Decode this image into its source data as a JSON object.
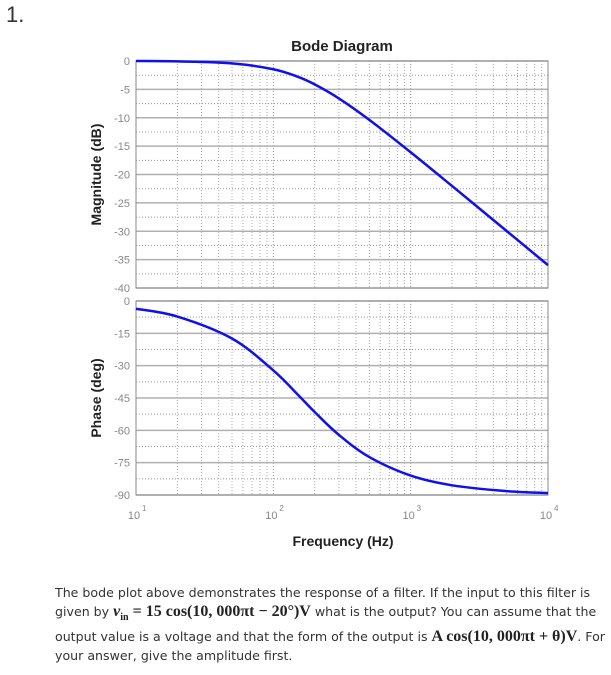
{
  "question_number": "1.",
  "chart_data": [
    {
      "type": "line",
      "title": "Bode Diagram",
      "ylabel": "Magnitude (dB)",
      "xscale": "log",
      "xlim": [
        10,
        10000
      ],
      "ylim": [
        -40,
        0
      ],
      "yticks": [
        "0",
        "-5",
        "-10",
        "-15",
        "-20",
        "-25",
        "-30",
        "-35",
        "-40"
      ],
      "grid": true,
      "color": "#1010ee",
      "x": [
        10,
        20,
        50,
        100,
        150,
        200,
        300,
        500,
        1000,
        2000,
        5000,
        10000
      ],
      "y": [
        0,
        -0.07,
        -0.41,
        -1.45,
        -2.76,
        -4.12,
        -6.59,
        -10.37,
        -16.08,
        -22.02,
        -29.96,
        -35.97
      ]
    },
    {
      "type": "line",
      "ylabel": "Phase (deg)",
      "xlabel": "Frequency (Hz)",
      "xscale": "log",
      "xlim": [
        10,
        10000
      ],
      "ylim": [
        -90,
        0
      ],
      "yticks": [
        "0",
        "-15",
        "-30",
        "-45",
        "-60",
        "-75",
        "-90"
      ],
      "xticks": [
        {
          "base": "10",
          "exp": "1"
        },
        {
          "base": "10",
          "exp": "2"
        },
        {
          "base": "10",
          "exp": "3"
        },
        {
          "base": "10",
          "exp": "4"
        }
      ],
      "grid": true,
      "color": "#1010ee",
      "x": [
        10,
        20,
        50,
        100,
        150,
        200,
        300,
        500,
        1000,
        2000,
        5000,
        10000
      ],
      "y": [
        -3.6,
        -7.2,
        -17.4,
        -32.2,
        -43.3,
        -51.5,
        -62.1,
        -72.4,
        -81.0,
        -85.5,
        -88.2,
        -89.1
      ]
    }
  ],
  "question": {
    "t1": "The bode plot above demonstrates the response of a filter. If the input to this filter is given by ",
    "m1": "v",
    "m1sub": "in",
    "m1rest": " = 15 cos(10, 000πt − 20°)V",
    "t2": " what is the output? You can assume that the output value is a voltage and that the form of the output is ",
    "m2": "A cos(10, 000πt + θ)V",
    "t3": ". For your answer, give the amplitude first."
  }
}
